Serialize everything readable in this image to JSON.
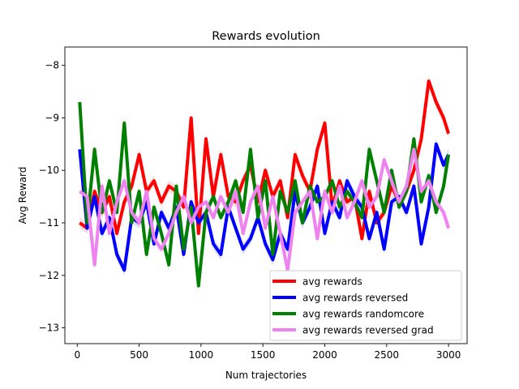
{
  "chart_data": {
    "type": "line",
    "title": "Rewards evolution",
    "xlabel": "Num trajectories",
    "ylabel": "Avg Reward",
    "xlim": [
      -100,
      3150
    ],
    "ylim": [
      -13.3,
      -7.65
    ],
    "xticks": [
      0,
      500,
      1000,
      1500,
      2000,
      2500,
      3000
    ],
    "yticks": [
      -13,
      -12,
      -11,
      -10,
      -9,
      -8
    ],
    "grid": false,
    "legend_position": "lower-right",
    "series": [
      {
        "name": "avg rewards",
        "color": "#ff0000",
        "x": [
          20,
          80,
          140,
          200,
          260,
          320,
          380,
          440,
          500,
          560,
          620,
          680,
          740,
          800,
          860,
          920,
          980,
          1040,
          1100,
          1160,
          1220,
          1280,
          1340,
          1400,
          1460,
          1520,
          1580,
          1640,
          1700,
          1760,
          1820,
          1880,
          1940,
          2000,
          2060,
          2120,
          2180,
          2240,
          2300,
          2360,
          2420,
          2480,
          2540,
          2600,
          2660,
          2720,
          2780,
          2840,
          2900,
          2960,
          3000
        ],
        "y": [
          -11.0,
          -11.1,
          -10.4,
          -10.8,
          -10.5,
          -11.2,
          -10.6,
          -10.3,
          -9.7,
          -10.4,
          -10.2,
          -10.6,
          -10.3,
          -10.4,
          -10.7,
          -9.0,
          -11.2,
          -9.4,
          -10.5,
          -9.7,
          -10.5,
          -10.6,
          -10.2,
          -9.9,
          -10.6,
          -10.0,
          -10.5,
          -10.2,
          -10.9,
          -9.7,
          -10.1,
          -10.4,
          -9.6,
          -9.1,
          -10.7,
          -10.2,
          -10.6,
          -10.5,
          -11.3,
          -10.4,
          -11.0,
          -10.8,
          -10.3,
          -10.6,
          -10.4,
          -10.0,
          -9.4,
          -8.3,
          -8.7,
          -9.0,
          -9.3
        ]
      },
      {
        "name": "avg rewards reversed",
        "color": "#0000ff",
        "x": [
          20,
          80,
          140,
          200,
          260,
          320,
          380,
          440,
          500,
          560,
          620,
          680,
          740,
          800,
          860,
          920,
          980,
          1040,
          1100,
          1160,
          1220,
          1280,
          1340,
          1400,
          1460,
          1520,
          1580,
          1640,
          1700,
          1760,
          1820,
          1880,
          1940,
          2000,
          2060,
          2120,
          2180,
          2240,
          2300,
          2360,
          2420,
          2480,
          2540,
          2600,
          2660,
          2720,
          2780,
          2840,
          2900,
          2960,
          3000
        ],
        "y": [
          -9.6,
          -11.1,
          -10.5,
          -11.2,
          -10.9,
          -11.6,
          -11.9,
          -10.9,
          -11.0,
          -10.6,
          -11.4,
          -10.8,
          -11.1,
          -10.7,
          -11.6,
          -10.6,
          -11.0,
          -10.8,
          -11.4,
          -11.6,
          -10.7,
          -11.1,
          -11.5,
          -11.3,
          -10.9,
          -11.4,
          -11.7,
          -11.2,
          -11.5,
          -10.4,
          -11.0,
          -10.7,
          -10.3,
          -11.2,
          -10.6,
          -10.9,
          -10.2,
          -10.5,
          -10.7,
          -11.3,
          -10.8,
          -11.5,
          -10.6,
          -10.5,
          -10.8,
          -10.3,
          -11.4,
          -10.7,
          -9.5,
          -9.9,
          -9.7
        ]
      },
      {
        "name": "avg rewards randomcore",
        "color": "#008000",
        "x": [
          20,
          80,
          140,
          200,
          260,
          320,
          380,
          440,
          500,
          560,
          620,
          680,
          740,
          800,
          860,
          920,
          980,
          1040,
          1100,
          1160,
          1220,
          1280,
          1340,
          1400,
          1460,
          1520,
          1580,
          1640,
          1700,
          1760,
          1820,
          1880,
          1940,
          2000,
          2060,
          2120,
          2180,
          2240,
          2300,
          2360,
          2420,
          2480,
          2540,
          2600,
          2660,
          2720,
          2780,
          2840,
          2900,
          2960,
          3000
        ],
        "y": [
          -8.7,
          -11.0,
          -9.6,
          -10.8,
          -10.2,
          -10.8,
          -9.1,
          -11.0,
          -10.4,
          -11.6,
          -10.7,
          -11.2,
          -11.8,
          -10.3,
          -11.5,
          -10.7,
          -12.2,
          -10.8,
          -10.5,
          -10.9,
          -10.6,
          -10.2,
          -10.8,
          -9.6,
          -10.9,
          -10.2,
          -11.6,
          -10.4,
          -10.8,
          -10.2,
          -11.0,
          -10.3,
          -10.6,
          -10.5,
          -10.2,
          -10.7,
          -10.4,
          -10.6,
          -10.9,
          -9.6,
          -10.2,
          -10.8,
          -10.0,
          -10.7,
          -10.4,
          -9.4,
          -10.6,
          -10.1,
          -10.8,
          -10.3,
          -9.7
        ]
      },
      {
        "name": "avg rewards reversed grad",
        "color": "#ee82ee",
        "x": [
          20,
          80,
          140,
          200,
          260,
          320,
          380,
          440,
          500,
          560,
          620,
          680,
          740,
          800,
          860,
          920,
          980,
          1040,
          1100,
          1160,
          1220,
          1280,
          1340,
          1400,
          1460,
          1520,
          1580,
          1640,
          1700,
          1760,
          1820,
          1880,
          1940,
          2000,
          2060,
          2120,
          2180,
          2240,
          2300,
          2360,
          2420,
          2480,
          2540,
          2600,
          2660,
          2720,
          2780,
          2840,
          2900,
          2960,
          3000
        ],
        "y": [
          -10.4,
          -10.5,
          -11.8,
          -10.3,
          -11.2,
          -10.6,
          -10.2,
          -10.8,
          -11.0,
          -10.4,
          -11.3,
          -11.5,
          -11.2,
          -10.8,
          -10.5,
          -11.0,
          -10.7,
          -10.6,
          -10.9,
          -10.5,
          -10.8,
          -10.4,
          -11.2,
          -10.6,
          -10.3,
          -11.1,
          -10.5,
          -11.2,
          -11.9,
          -10.8,
          -10.6,
          -10.4,
          -11.3,
          -10.4,
          -10.8,
          -10.3,
          -10.9,
          -10.6,
          -10.2,
          -10.7,
          -10.5,
          -9.8,
          -10.2,
          -10.6,
          -10.3,
          -9.6,
          -10.4,
          -10.2,
          -10.6,
          -10.8,
          -11.1
        ]
      }
    ]
  }
}
